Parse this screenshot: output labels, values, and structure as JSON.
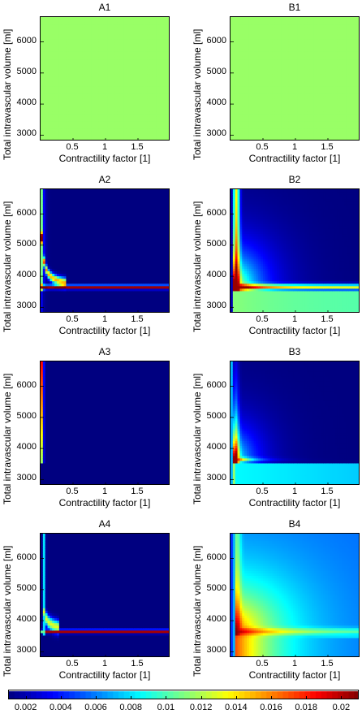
{
  "chart_data": {
    "type": "heatmap",
    "x_label": "Contractility factor [1]",
    "y_label": "Total intravascular volume [ml]",
    "x_ticks": [
      "0.5",
      "1",
      "1.5"
    ],
    "x_tick_values": [
      0.5,
      1,
      1.5
    ],
    "xlim": [
      0,
      2
    ],
    "y_ticks": [
      "3000",
      "4000",
      "5000",
      "6000"
    ],
    "y_tick_values": [
      3000,
      4000,
      5000,
      6000
    ],
    "ylim": [
      2800,
      6800
    ],
    "colorbar": {
      "colormap": "jet",
      "range": [
        0.001,
        0.021
      ],
      "ticks": [
        "0.002",
        "0.004",
        "0.006",
        "0.008",
        "0.01",
        "0.012",
        "0.014",
        "0.016",
        "0.018",
        "0.02"
      ],
      "tick_values": [
        0.002,
        0.004,
        0.006,
        0.008,
        0.01,
        0.012,
        0.014,
        0.016,
        0.018,
        0.02
      ]
    },
    "panels": [
      {
        "title": "A1",
        "pattern": "uniform",
        "base": 0.0115
      },
      {
        "title": "B1",
        "pattern": "uniform",
        "base": 0.0115
      },
      {
        "title": "A2",
        "pattern": "A2",
        "base": 0.001
      },
      {
        "title": "B2",
        "pattern": "B2",
        "base": 0.001
      },
      {
        "title": "A3",
        "pattern": "A3",
        "base": 0.001
      },
      {
        "title": "B3",
        "pattern": "B3",
        "base": 0.001
      },
      {
        "title": "A4",
        "pattern": "A4",
        "base": 0.001
      },
      {
        "title": "B4",
        "pattern": "B4",
        "base": 0.005
      }
    ]
  }
}
